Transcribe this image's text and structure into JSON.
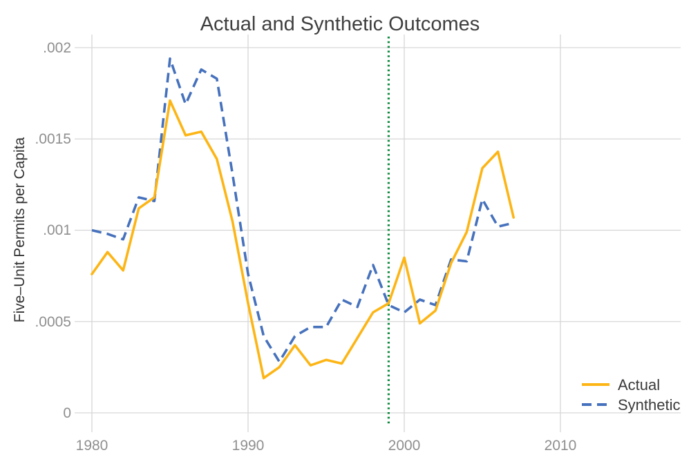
{
  "title": "Actual and Synthetic Outcomes",
  "y_axis": {
    "label": "Five–Unit Permits per Capita",
    "ticks": [
      "0",
      ".0005",
      ".001",
      ".0015",
      ".002"
    ]
  },
  "x_axis": {
    "ticks": [
      "1980",
      "1990",
      "2000",
      "2010"
    ]
  },
  "legend": [
    {
      "label": "Actual",
      "color": "#fdb515",
      "line_style": "solid"
    },
    {
      "label": "Synthetic",
      "color": "#4671bc",
      "line_style": "dashed"
    }
  ],
  "colors": {
    "actual": "#fdb515",
    "synthetic": "#4671bc",
    "treatment_line": "#0e8a3e",
    "grid": "#d6d6d6",
    "tick_text": "#8f8f8f",
    "dark_text": "#3f3f3f"
  },
  "chart_data": {
    "type": "line",
    "title": "Actual and Synthetic Outcomes",
    "xlabel": "",
    "ylabel": "Five–Unit Permits per Capita",
    "ylim": [
      0,
      0.002
    ],
    "yticks": [
      0,
      0.0005,
      0.001,
      0.0015,
      0.002
    ],
    "xticks": [
      1980,
      1990,
      2000,
      2010
    ],
    "grid": true,
    "legend_position": "bottom-right",
    "x": [
      1980,
      1981,
      1982,
      1983,
      1984,
      1985,
      1986,
      1987,
      1988,
      1989,
      1990,
      1991,
      1992,
      1993,
      1994,
      1995,
      1996,
      1997,
      1998,
      1999,
      2000,
      2001,
      2002,
      2003,
      2004,
      2005,
      2006,
      2007
    ],
    "series": [
      {
        "name": "Actual",
        "color": "#fdb515",
        "dash": "solid",
        "values": [
          0.00076,
          0.00088,
          0.00078,
          0.00112,
          0.00118,
          0.00171,
          0.00152,
          0.00154,
          0.00139,
          0.00105,
          0.0006,
          0.00019,
          0.00025,
          0.00037,
          0.00026,
          0.00029,
          0.00027,
          0.00041,
          0.00055,
          0.0006,
          0.00085,
          0.00049,
          0.00056,
          0.00082,
          0.00099,
          0.00134,
          0.00143,
          0.00107
        ]
      },
      {
        "name": "Synthetic",
        "color": "#4671bc",
        "dash": "dashed",
        "values": [
          0.001,
          0.00098,
          0.00095,
          0.00118,
          0.00116,
          0.00194,
          0.00169,
          0.00188,
          0.00183,
          0.00131,
          0.00076,
          0.00042,
          0.00028,
          0.00042,
          0.00047,
          0.00047,
          0.00062,
          0.00058,
          0.00081,
          0.00059,
          0.00055,
          0.00062,
          0.00059,
          0.00084,
          0.00083,
          0.00117,
          0.00102,
          0.00104
        ]
      }
    ],
    "vline": {
      "x": 1999,
      "color": "#0e8a3e",
      "style": "dotted"
    }
  }
}
